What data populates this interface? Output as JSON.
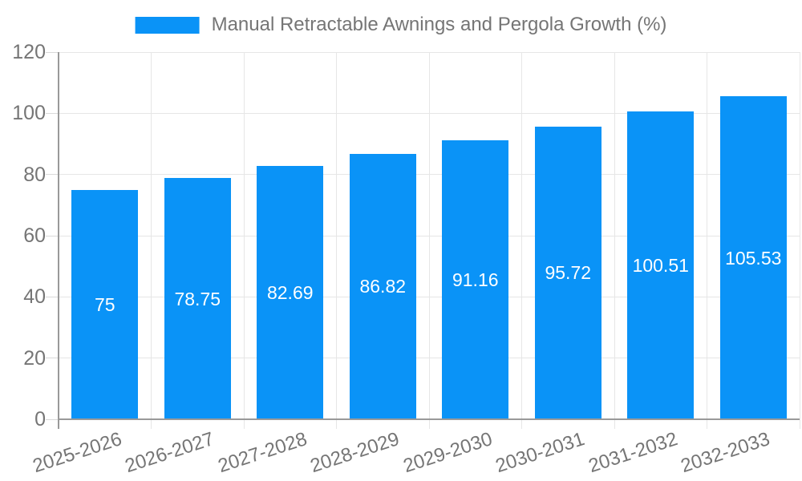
{
  "chart_data": {
    "type": "bar",
    "title": "Manual Retractable Awnings and Pergola Growth (%)",
    "categories": [
      "2025-2026",
      "2026-2027",
      "2027-2028",
      "2028-2029",
      "2029-2030",
      "2030-2031",
      "2031-2032",
      "2032-2033"
    ],
    "values": [
      75,
      78.75,
      82.69,
      86.82,
      91.16,
      95.72,
      100.51,
      105.53
    ],
    "value_labels": [
      "75",
      "78.75",
      "82.69",
      "86.82",
      "91.16",
      "95.72",
      "100.51",
      "105.53"
    ],
    "xlabel": "",
    "ylabel": "",
    "ylim": [
      0,
      120
    ],
    "yticks": [
      0,
      20,
      40,
      60,
      80,
      100,
      120
    ],
    "grid": true,
    "legend_position": "top",
    "colors": {
      "bar": "#0a93f7",
      "value_label_text": "#ffffff",
      "axis_text": "#757575",
      "legend_text": "#757575",
      "gridline": "#e6e6e6",
      "tick_dash": "#d9d9d9",
      "axis_line": "#999999",
      "background": "#ffffff"
    }
  }
}
